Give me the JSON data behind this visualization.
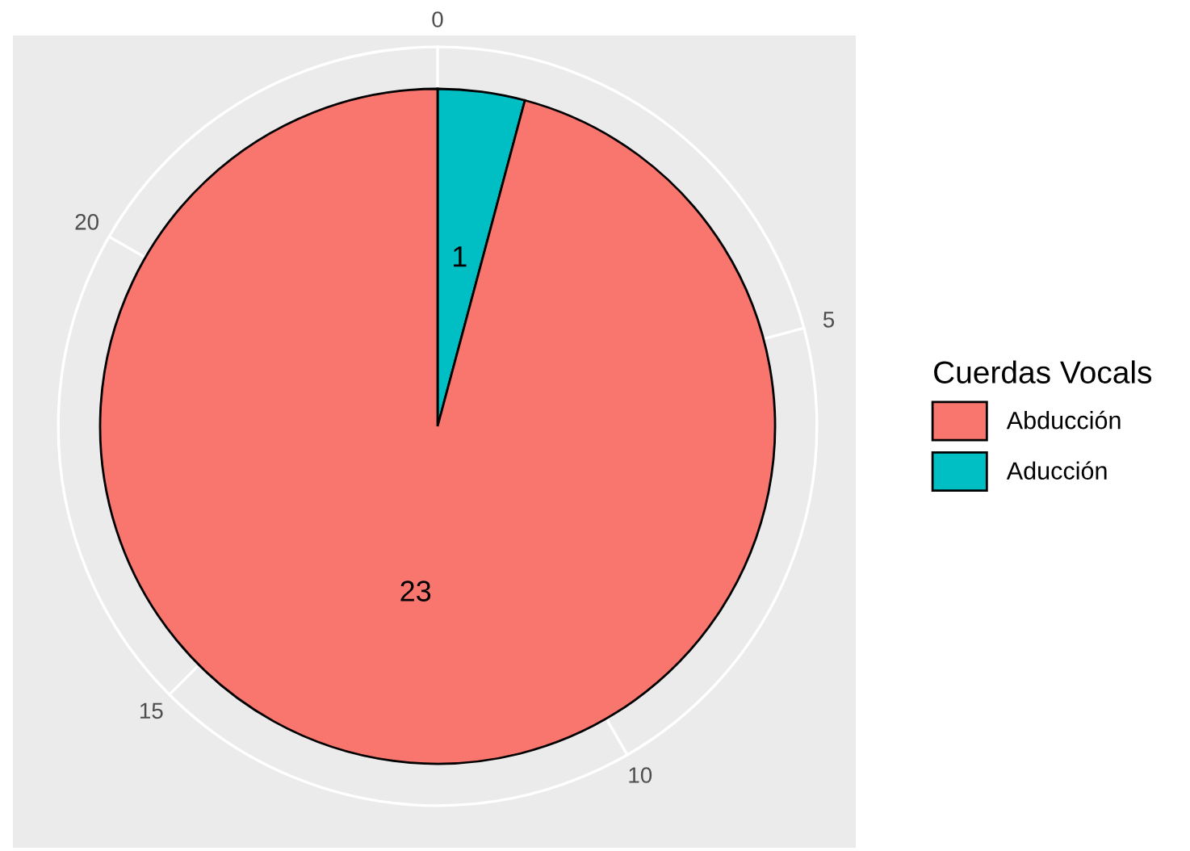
{
  "chart_data": {
    "type": "pie",
    "legend_title": "Cuerdas Vocals",
    "categories": [
      "Abducción",
      "Aducción"
    ],
    "values": [
      23,
      1
    ],
    "colors": [
      "#f8766d",
      "#00bfc4"
    ],
    "annotations": [
      "0",
      "5",
      "10",
      "15",
      "20"
    ],
    "data_labels": true,
    "legend": "right"
  }
}
